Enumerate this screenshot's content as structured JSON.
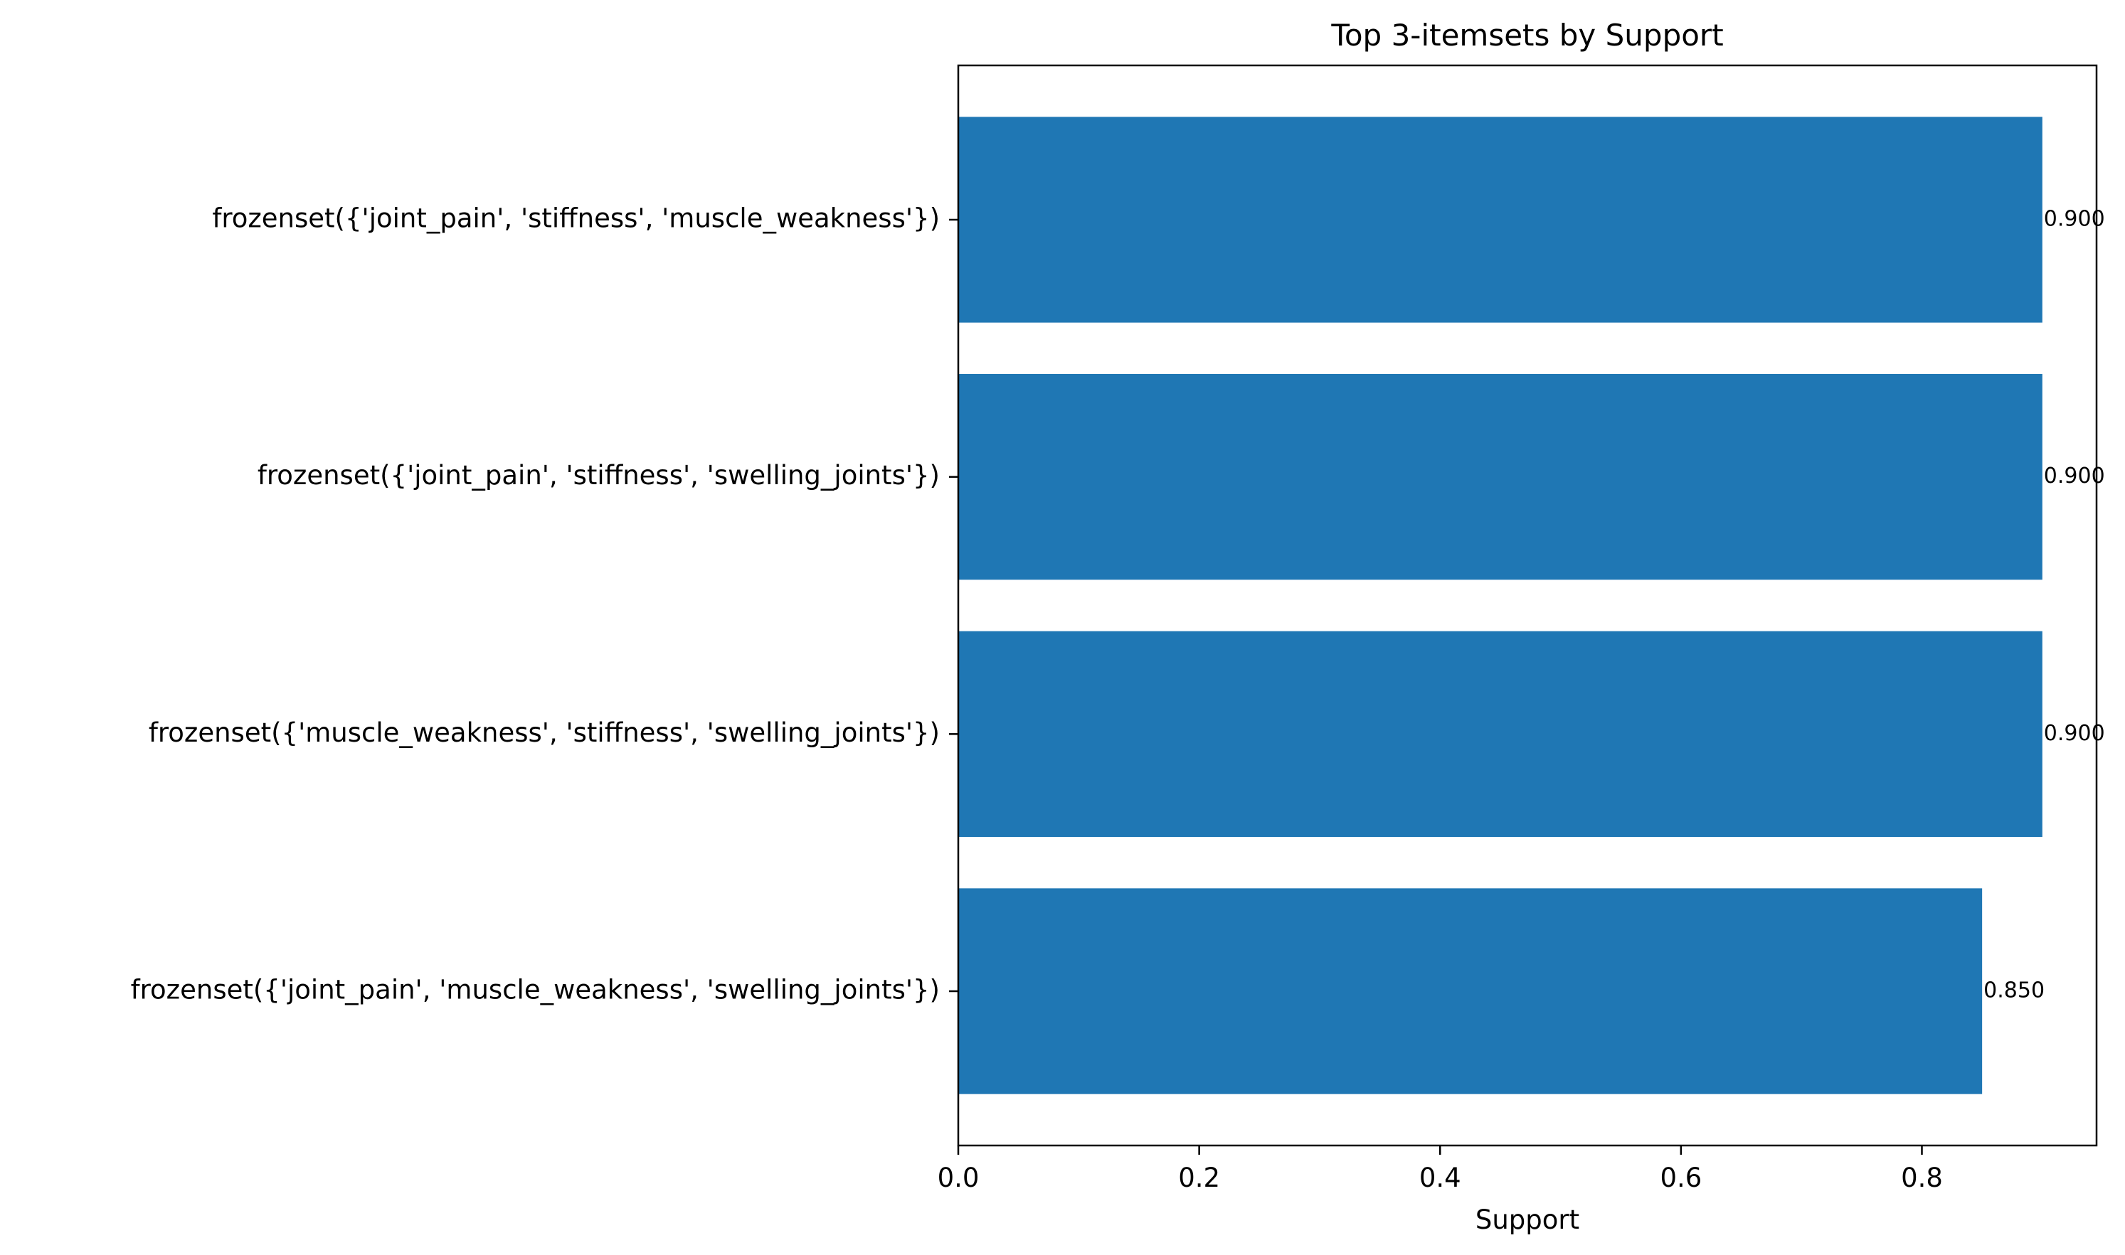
{
  "chart_data": {
    "type": "bar",
    "orientation": "horizontal",
    "title": "Top 3-itemsets by Support",
    "xlabel": "Support",
    "ylabel": "",
    "xlim": [
      0,
      0.945
    ],
    "xticks": [
      0.0,
      0.2,
      0.4,
      0.6,
      0.8
    ],
    "xtick_labels": [
      "0.0",
      "0.2",
      "0.4",
      "0.6",
      "0.8"
    ],
    "categories": [
      "frozenset({'joint_pain', 'stiffness', 'muscle_weakness'})",
      "frozenset({'joint_pain', 'stiffness', 'swelling_joints'})",
      "frozenset({'muscle_weakness', 'stiffness', 'swelling_joints'})",
      "frozenset({'joint_pain', 'muscle_weakness', 'swelling_joints'})"
    ],
    "values": [
      0.9,
      0.9,
      0.9,
      0.85
    ],
    "value_labels": [
      "0.900",
      "0.900",
      "0.900",
      "0.850"
    ],
    "bar_color": "#1f77b4",
    "grid": false,
    "legend": "none"
  }
}
